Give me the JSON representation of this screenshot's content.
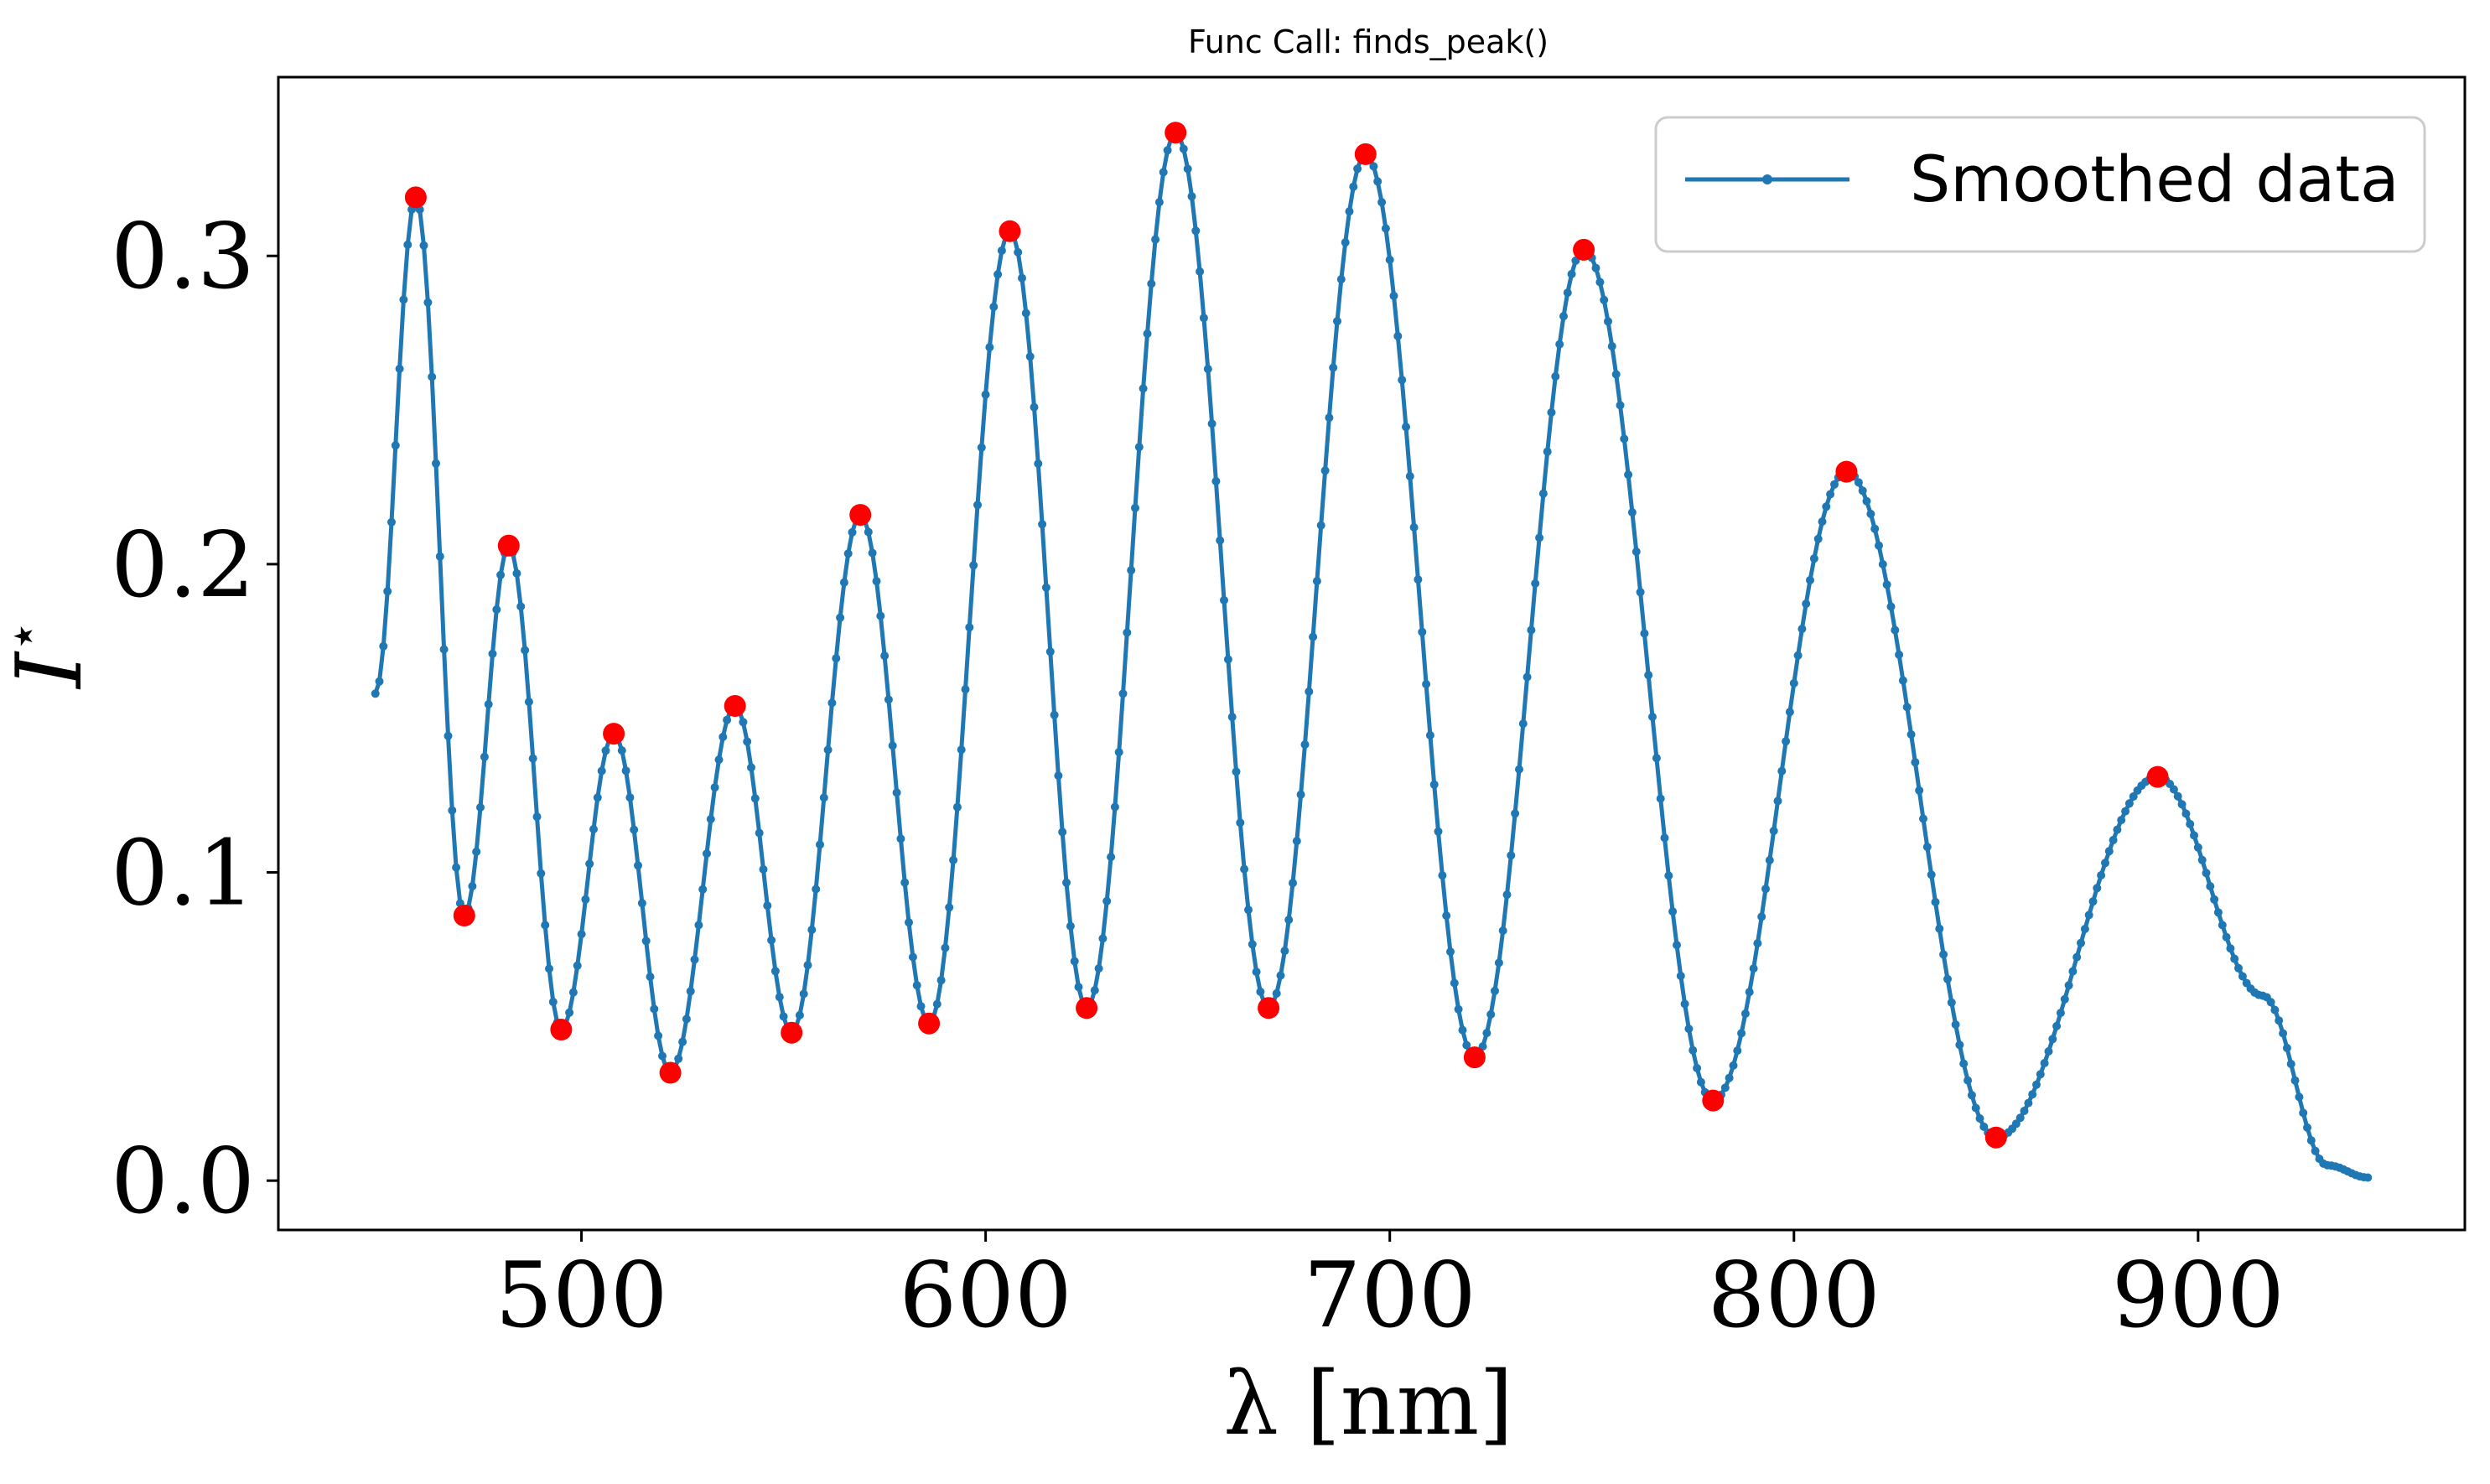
{
  "chart_data": {
    "type": "line",
    "title": "Func Call: finds_peak()",
    "xlabel": "λ [nm]",
    "ylabel": "I",
    "ylabel_superscript": "⋆",
    "xlim": [
      425,
      966
    ],
    "ylim": [
      -0.016,
      0.358
    ],
    "x_ticks": [
      500,
      600,
      700,
      800,
      900
    ],
    "x_tick_labels": [
      "500",
      "600",
      "700",
      "800",
      "900"
    ],
    "y_ticks": [
      0.0,
      0.1,
      0.2,
      0.3
    ],
    "y_tick_labels": [
      "0.0",
      "0.1",
      "0.2",
      "0.3"
    ],
    "grid": false,
    "legend_position": "top-right",
    "series": [
      {
        "name": "Smoothed data",
        "color": "#1f77b4",
        "marker": "dot",
        "x_start": 449,
        "x_end": 942,
        "x_step": 1,
        "envelope": [
          {
            "x": 449,
            "y": 0.158
          },
          {
            "x": 459,
            "y": 0.319
          },
          {
            "x": 471,
            "y": 0.086
          },
          {
            "x": 482,
            "y": 0.206
          },
          {
            "x": 495,
            "y": 0.049
          },
          {
            "x": 508,
            "y": 0.145
          },
          {
            "x": 522,
            "y": 0.035
          },
          {
            "x": 538,
            "y": 0.154
          },
          {
            "x": 552,
            "y": 0.048
          },
          {
            "x": 569,
            "y": 0.216
          },
          {
            "x": 586,
            "y": 0.051
          },
          {
            "x": 606,
            "y": 0.308
          },
          {
            "x": 625,
            "y": 0.056
          },
          {
            "x": 647,
            "y": 0.34
          },
          {
            "x": 670,
            "y": 0.056
          },
          {
            "x": 694,
            "y": 0.333
          },
          {
            "x": 721,
            "y": 0.04
          },
          {
            "x": 748,
            "y": 0.302
          },
          {
            "x": 780,
            "y": 0.026
          },
          {
            "x": 813,
            "y": 0.23
          },
          {
            "x": 850,
            "y": 0.014
          },
          {
            "x": 890,
            "y": 0.131
          },
          {
            "x": 916,
            "y": 0.06
          },
          {
            "x": 932,
            "y": 0.005
          },
          {
            "x": 942,
            "y": 0.001
          }
        ]
      },
      {
        "name": "Peaks",
        "color": "#ff0000",
        "marker": "circle",
        "points": [
          {
            "x": 459,
            "y": 0.319
          },
          {
            "x": 471,
            "y": 0.086
          },
          {
            "x": 482,
            "y": 0.206
          },
          {
            "x": 495,
            "y": 0.049
          },
          {
            "x": 508,
            "y": 0.145
          },
          {
            "x": 522,
            "y": 0.035
          },
          {
            "x": 538,
            "y": 0.154
          },
          {
            "x": 552,
            "y": 0.048
          },
          {
            "x": 569,
            "y": 0.216
          },
          {
            "x": 586,
            "y": 0.051
          },
          {
            "x": 606,
            "y": 0.308
          },
          {
            "x": 625,
            "y": 0.056
          },
          {
            "x": 647,
            "y": 0.34
          },
          {
            "x": 670,
            "y": 0.056
          },
          {
            "x": 694,
            "y": 0.333
          },
          {
            "x": 721,
            "y": 0.04
          },
          {
            "x": 748,
            "y": 0.302
          },
          {
            "x": 780,
            "y": 0.026
          },
          {
            "x": 813,
            "y": 0.23
          },
          {
            "x": 850,
            "y": 0.014
          },
          {
            "x": 890,
            "y": 0.131
          }
        ]
      }
    ]
  }
}
